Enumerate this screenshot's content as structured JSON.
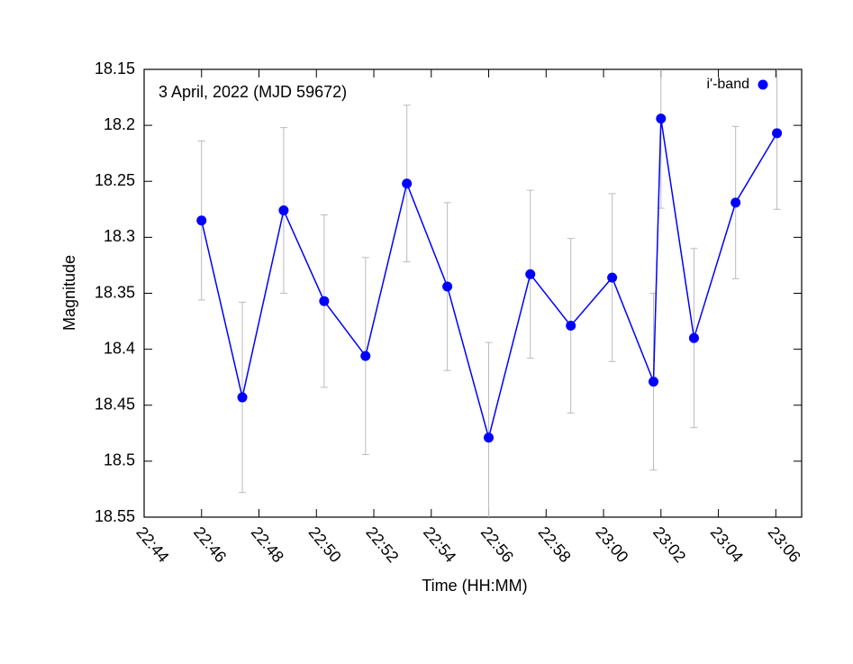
{
  "chart_data": {
    "type": "line",
    "annotation": "3 April, 2022 (MJD 59672)",
    "xlabel": "Time (HH:MM)",
    "ylabel": "Magnitude",
    "x": [
      1366.0,
      1367.42,
      1368.86,
      1370.27,
      1371.71,
      1373.15,
      1374.56,
      1376.0,
      1377.45,
      1378.86,
      1380.3,
      1381.74,
      1382.0,
      1383.15,
      1384.6,
      1386.04
    ],
    "series": [
      {
        "name": "i'-band",
        "color": "#0000ff",
        "error_color": "#bbbbbb",
        "values": [
          18.285,
          18.443,
          18.276,
          18.357,
          18.406,
          18.252,
          18.344,
          18.479,
          18.333,
          18.379,
          18.336,
          18.429,
          18.194,
          18.39,
          18.269,
          18.207
        ],
        "errors": [
          0.071,
          0.085,
          0.074,
          0.077,
          0.088,
          0.07,
          0.075,
          0.085,
          0.075,
          0.078,
          0.075,
          0.079,
          0.08,
          0.08,
          0.068,
          0.068
        ]
      }
    ],
    "xlim": [
      1364,
      1386.9
    ],
    "xticks": [
      {
        "value": 1364,
        "label": "22:44"
      },
      {
        "value": 1366,
        "label": "22:46"
      },
      {
        "value": 1368,
        "label": "22:48"
      },
      {
        "value": 1370,
        "label": "22:50"
      },
      {
        "value": 1372,
        "label": "22:52"
      },
      {
        "value": 1374,
        "label": "22:54"
      },
      {
        "value": 1376,
        "label": "22:56"
      },
      {
        "value": 1378,
        "label": "22:58"
      },
      {
        "value": 1380,
        "label": "23:00"
      },
      {
        "value": 1382,
        "label": "23:02"
      },
      {
        "value": 1384,
        "label": "23:04"
      },
      {
        "value": 1386,
        "label": "23:06"
      }
    ],
    "ylim": [
      18.15,
      18.55
    ],
    "y_reversed": true,
    "yticks": [
      18.15,
      18.2,
      18.25,
      18.3,
      18.35,
      18.4,
      18.45,
      18.5,
      18.55
    ],
    "grid": false,
    "legend": "top-right"
  }
}
